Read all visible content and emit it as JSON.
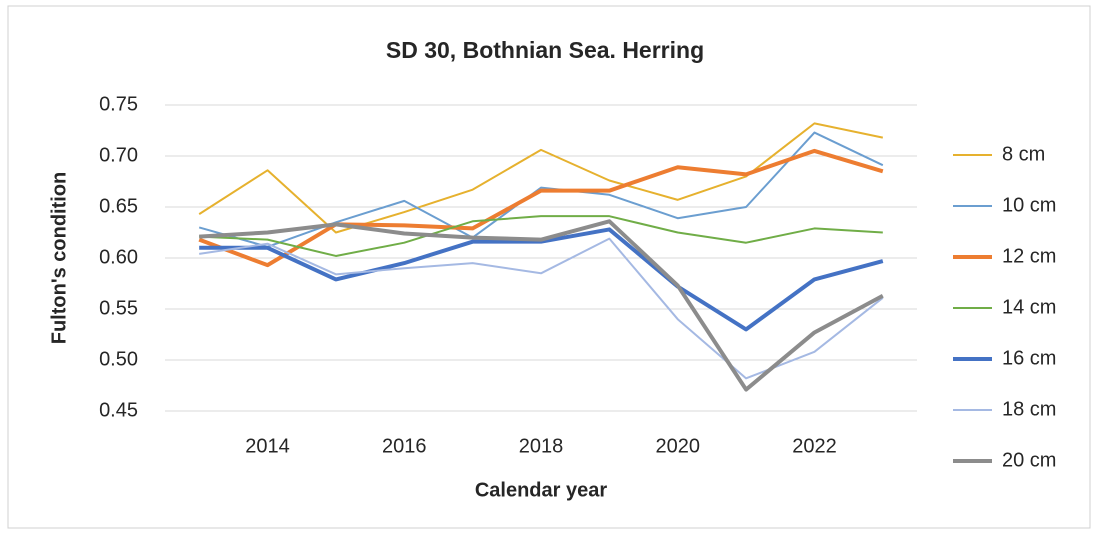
{
  "chart_data": {
    "type": "line",
    "title": "SD 30, Bothnian Sea. Herring",
    "x_label": "Calendar year",
    "y_label": "Fulton's condition",
    "x": [
      2013,
      2014,
      2015,
      2016,
      2017,
      2018,
      2019,
      2020,
      2021,
      2022,
      2023
    ],
    "xlim": [
      2012.5,
      2023.5
    ],
    "xticks": [
      2014,
      2016,
      2018,
      2020,
      2022
    ],
    "ylim": [
      0.45,
      0.75
    ],
    "yticks": [
      0.45,
      {
        "value": 0.5,
        "label": "0.50"
      },
      0.55,
      {
        "value": 0.6,
        "label": "0.60"
      },
      0.65,
      {
        "value": 0.7,
        "label": "0.70"
      },
      0.75
    ],
    "grid": true,
    "legend": "right",
    "series": [
      {
        "name": "8 cm",
        "color": "#e6b12e",
        "values": [
          0.643,
          0.686,
          0.625,
          0.645,
          0.667,
          0.706,
          0.676,
          0.657,
          0.68,
          0.732,
          0.718
        ]
      },
      {
        "name": "10 cm",
        "color": "#6b9ed0",
        "values": [
          0.63,
          0.611,
          0.635,
          0.656,
          0.62,
          0.669,
          0.662,
          0.639,
          0.65,
          0.723,
          0.691
        ]
      },
      {
        "name": "12 cm",
        "color": "#ed7d31",
        "values": [
          0.618,
          0.593,
          0.633,
          0.632,
          0.629,
          0.666,
          0.666,
          0.689,
          0.682,
          0.705,
          0.685
        ]
      },
      {
        "name": "14 cm",
        "color": "#70ad47",
        "values": [
          0.621,
          0.618,
          0.602,
          0.615,
          0.636,
          0.641,
          0.641,
          0.625,
          0.615,
          0.629,
          0.625
        ]
      },
      {
        "name": "16 cm",
        "color": "#4472c4",
        "values": [
          0.61,
          0.61,
          0.579,
          0.595,
          0.616,
          0.616,
          0.628,
          0.572,
          0.53,
          0.579,
          0.597
        ]
      },
      {
        "name": "18 cm",
        "color": "#a5b9e3",
        "values": [
          0.604,
          0.614,
          0.584,
          0.59,
          0.595,
          0.585,
          0.619,
          0.54,
          0.482,
          0.508,
          0.561
        ]
      },
      {
        "name": "20 cm",
        "color": "#8c8c8c",
        "values": [
          0.621,
          0.625,
          0.633,
          0.624,
          0.62,
          0.618,
          0.636,
          0.573,
          0.471,
          0.527,
          0.563
        ]
      }
    ]
  }
}
